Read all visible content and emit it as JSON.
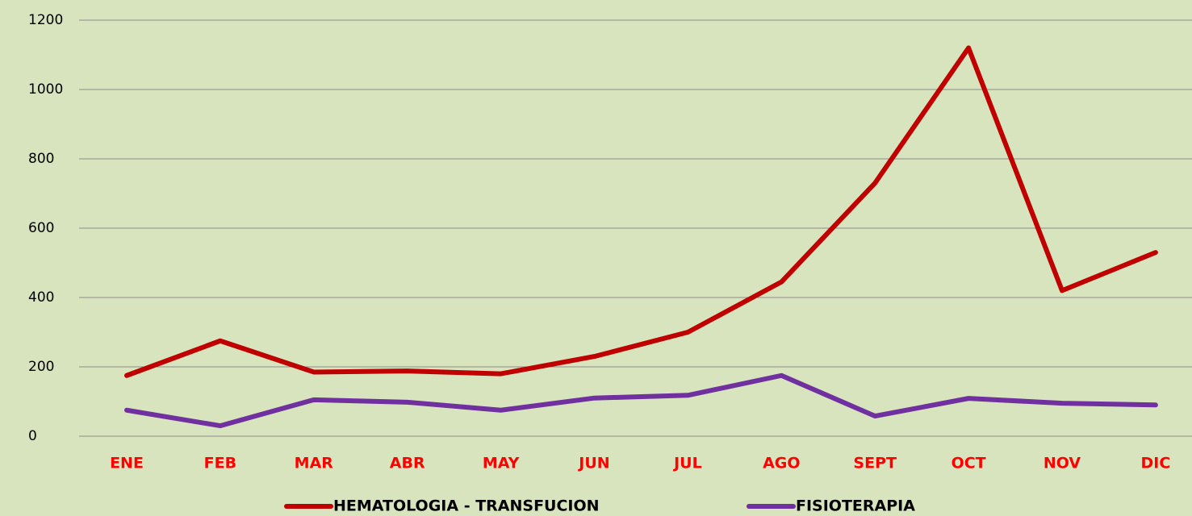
{
  "chart_data": {
    "type": "line",
    "categories": [
      "ENE",
      "FEB",
      "MAR",
      "ABR",
      "MAY",
      "JUN",
      "JUL",
      "AGO",
      "SEPT",
      "OCT",
      "NOV",
      "DIC"
    ],
    "series": [
      {
        "name": "HEMATOLOGIA - TRANSFUCION",
        "color": "#c00000",
        "values": [
          175,
          275,
          185,
          188,
          180,
          230,
          300,
          445,
          730,
          1120,
          420,
          530
        ]
      },
      {
        "name": "FISIOTERAPIA",
        "color": "#7030a0",
        "values": [
          75,
          30,
          105,
          98,
          75,
          110,
          118,
          175,
          58,
          109,
          95,
          90
        ]
      }
    ],
    "ylim": [
      0,
      1200
    ],
    "yticks": [
      0,
      200,
      400,
      600,
      800,
      1000,
      1200
    ],
    "grid": true,
    "legend": "bottom"
  }
}
